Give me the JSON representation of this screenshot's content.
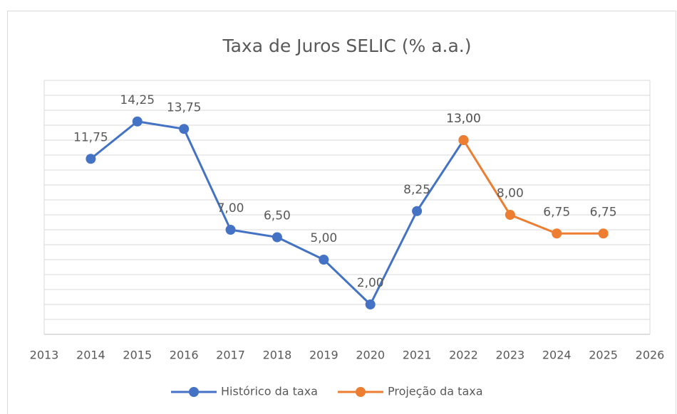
{
  "chart_data": {
    "type": "line",
    "title": "Taxa de Juros SELIC (% a.a.)",
    "xlim": [
      2013,
      2026
    ],
    "xticks": [
      2013,
      2014,
      2015,
      2016,
      2017,
      2018,
      2019,
      2020,
      2021,
      2022,
      2023,
      2024,
      2025,
      2026
    ],
    "ylim": [
      0,
      17
    ],
    "yticks": [
      0,
      1,
      2,
      3,
      4,
      5,
      6,
      7,
      8,
      9,
      10,
      11,
      12,
      13,
      14,
      15,
      16,
      17
    ],
    "grid": true,
    "legend": "bottom",
    "series": [
      {
        "name": "Histórico da taxa",
        "color": "#4472c4",
        "x": [
          2014,
          2015,
          2016,
          2017,
          2018,
          2019,
          2020,
          2021,
          2022
        ],
        "values": [
          11.75,
          14.25,
          13.75,
          7,
          6.5,
          5,
          2,
          8.25,
          13
        ],
        "value_labels": [
          "11,75",
          "14,25",
          "13,75",
          "7,00",
          "6,50",
          "5,00",
          "2,00",
          "8,25",
          "13,00"
        ]
      },
      {
        "name": "Projeção da taxa",
        "color": "#ed7d31",
        "x": [
          2022,
          2023,
          2024,
          2025
        ],
        "values": [
          13,
          8,
          6.75,
          6.75
        ],
        "value_labels": [
          "13,00",
          "8,00",
          "6,75",
          "6,75"
        ]
      }
    ]
  }
}
